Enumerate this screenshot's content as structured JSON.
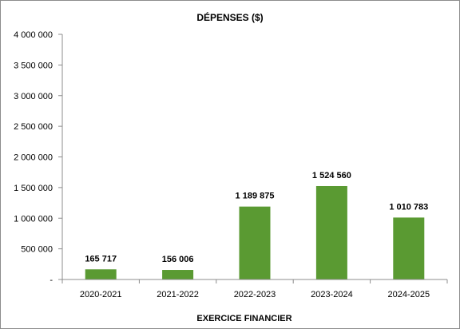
{
  "chart_data": {
    "type": "bar",
    "title": "DÉPENSES  ($)",
    "xlabel": "EXERCICE  FINANCIER",
    "ylabel": "",
    "categories": [
      "2020-2021",
      "2021-2022",
      "2022-2023",
      "2023-2024",
      "2024-2025"
    ],
    "values": [
      165717,
      156006,
      1189875,
      1524560,
      1010783
    ],
    "data_labels": [
      "165 717",
      "156 006",
      "1 189 875",
      "1 524 560",
      "1 010 783"
    ],
    "ylim": [
      0,
      4000000
    ],
    "yticks": [
      0,
      500000,
      1000000,
      1500000,
      2000000,
      2500000,
      3000000,
      3500000,
      4000000
    ],
    "ytick_labels": [
      "-",
      "500 000",
      "1 000 000",
      "1 500 000",
      "2 000 000",
      "2 500 000",
      "3 000 000",
      "3 500 000",
      "4 000 000"
    ],
    "grid": false,
    "bar_color": "#5a9a32",
    "axis_color": "#8c8c8c"
  }
}
